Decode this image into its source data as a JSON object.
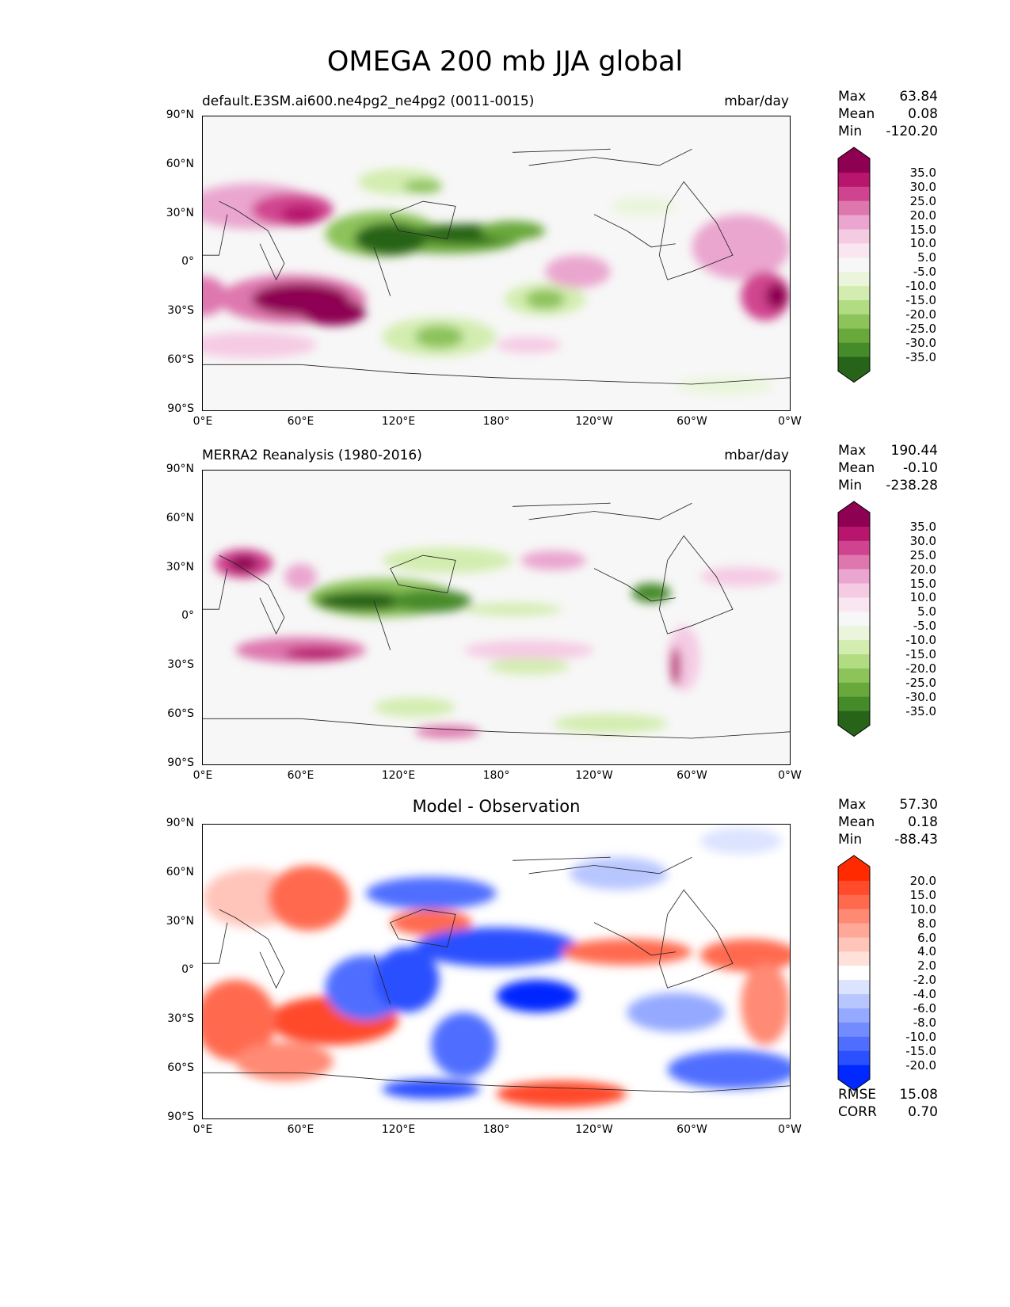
{
  "figure_title": "OMEGA 200 mb JJA global",
  "x_ticks": [
    "0°E",
    "60°E",
    "120°E",
    "180°",
    "120°W",
    "60°W",
    "0°W"
  ],
  "y_ticks": [
    "90°N",
    "60°N",
    "30°N",
    "0°",
    "30°S",
    "60°S",
    "90°S"
  ],
  "panels": [
    {
      "title": "default.E3SM.ai600.ne4pg2_ne4pg2 (0011-0015)",
      "units": "mbar/day",
      "stats": [
        {
          "label": "Max",
          "value": "63.84"
        },
        {
          "label": "Mean",
          "value": "0.08"
        },
        {
          "label": "Min",
          "value": "-120.20"
        }
      ],
      "colorbar": {
        "levels": [
          "35.0",
          "30.0",
          "25.0",
          "20.0",
          "15.0",
          "10.0",
          "5.0",
          "-5.0",
          "-10.0",
          "-15.0",
          "-20.0",
          "-25.0",
          "-30.0",
          "-35.0"
        ],
        "colors": [
          "#8e0152",
          "#b8166e",
          "#d0448f",
          "#de77ae",
          "#eaa6cf",
          "#f5cbe4",
          "#fae6f1",
          "#f7f7f7",
          "#eaf5dc",
          "#d3edb0",
          "#b1dc82",
          "#8cc35a",
          "#69a83a",
          "#468b2a",
          "#276419"
        ],
        "over": "#8e0152",
        "under": "#276419"
      }
    },
    {
      "title": "MERRA2 Reanalysis (1980-2016)",
      "units": "mbar/day",
      "stats": [
        {
          "label": "Max",
          "value": "190.44"
        },
        {
          "label": "Mean",
          "value": "-0.10"
        },
        {
          "label": "Min",
          "value": "-238.28"
        }
      ],
      "colorbar": {
        "levels": [
          "35.0",
          "30.0",
          "25.0",
          "20.0",
          "15.0",
          "10.0",
          "5.0",
          "-5.0",
          "-10.0",
          "-15.0",
          "-20.0",
          "-25.0",
          "-30.0",
          "-35.0"
        ],
        "colors": [
          "#8e0152",
          "#b8166e",
          "#d0448f",
          "#de77ae",
          "#eaa6cf",
          "#f5cbe4",
          "#fae6f1",
          "#f7f7f7",
          "#eaf5dc",
          "#d3edb0",
          "#b1dc82",
          "#8cc35a",
          "#69a83a",
          "#468b2a",
          "#276419"
        ],
        "over": "#8e0152",
        "under": "#276419"
      }
    },
    {
      "title": "Model - Observation",
      "stats": [
        {
          "label": "Max",
          "value": "57.30"
        },
        {
          "label": "Mean",
          "value": "0.18"
        },
        {
          "label": "Min",
          "value": "-88.43"
        }
      ],
      "extra_stats": [
        {
          "label": "RMSE",
          "value": "15.08"
        },
        {
          "label": "CORR",
          "value": "0.70"
        }
      ],
      "colorbar": {
        "levels": [
          "20.0",
          "15.0",
          "10.0",
          "8.0",
          "6.0",
          "4.0",
          "2.0",
          "-2.0",
          "-4.0",
          "-6.0",
          "-8.0",
          "-10.0",
          "-15.0",
          "-20.0"
        ],
        "colors": [
          "#ff2a00",
          "#ff4a2b",
          "#ff6a4f",
          "#ff8a74",
          "#ffa898",
          "#ffc5ba",
          "#ffe1da",
          "#ffffff",
          "#dbe3ff",
          "#b8c6ff",
          "#94a9ff",
          "#728cff",
          "#4f6eff",
          "#2b50ff",
          "#0028ff"
        ],
        "over": "#ff2a00",
        "under": "#0028ff"
      }
    }
  ]
}
